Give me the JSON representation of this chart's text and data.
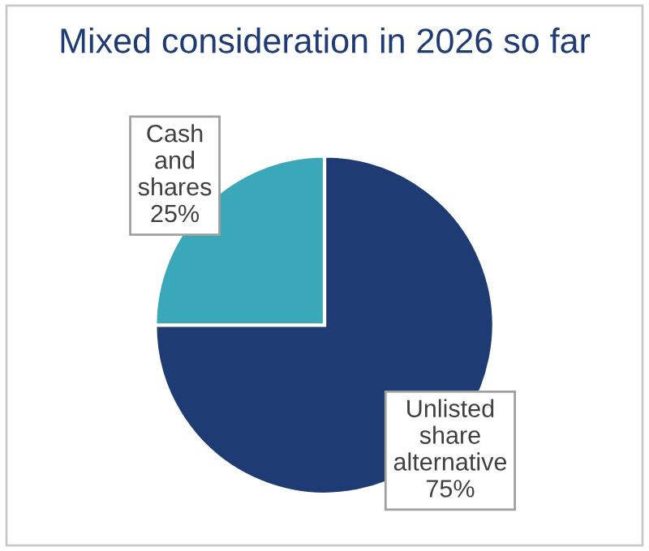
{
  "chart_data": {
    "type": "pie",
    "title": "Mixed consideration in 2026 so far",
    "categories": [
      "Unlisted share alternative",
      "Cash and shares"
    ],
    "values": [
      75,
      25
    ],
    "value_labels": [
      "75%",
      "25%"
    ],
    "colors": [
      "#1f3b73",
      "#3aa8b8"
    ],
    "legend": false
  }
}
